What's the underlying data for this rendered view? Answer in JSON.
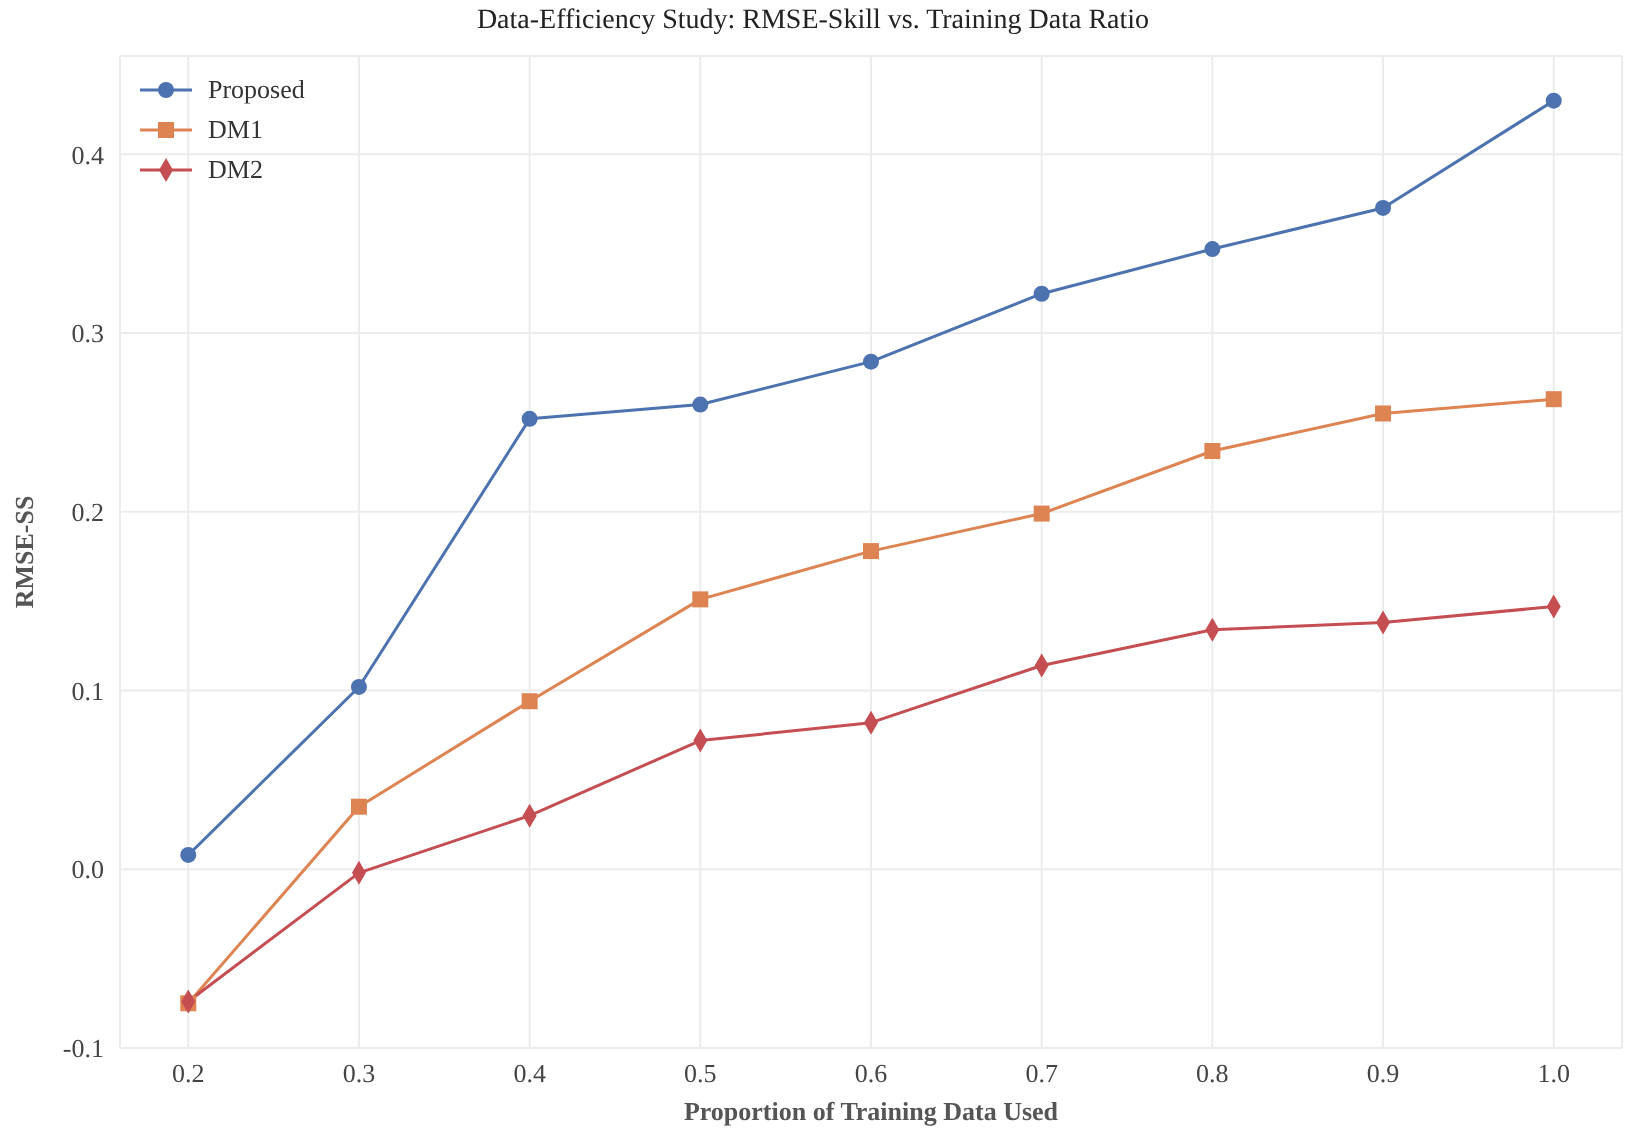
{
  "chart_data": {
    "type": "line",
    "title": "Data-Efficiency Study: RMSE-Skill vs. Training Data Ratio",
    "xlabel": "Proportion of Training Data Used",
    "ylabel": "RMSE-SS",
    "x": [
      0.2,
      0.3,
      0.4,
      0.5,
      0.6,
      0.7,
      0.8,
      0.9,
      1.0
    ],
    "series": [
      {
        "name": "Proposed",
        "color": "#4c72b0",
        "marker": "circle",
        "values": [
          0.008,
          0.102,
          0.252,
          0.26,
          0.284,
          0.322,
          0.347,
          0.37,
          0.43
        ]
      },
      {
        "name": "DM1",
        "color": "#dd8452",
        "marker": "square",
        "values": [
          -0.075,
          0.035,
          0.094,
          0.151,
          0.178,
          0.199,
          0.234,
          0.255,
          0.263
        ]
      },
      {
        "name": "DM2",
        "color": "#c44e52",
        "marker": "diamond",
        "values": [
          -0.074,
          -0.002,
          0.03,
          0.072,
          0.082,
          0.114,
          0.134,
          0.138,
          0.147
        ]
      }
    ],
    "xlim": [
      0.16,
      1.04
    ],
    "xticks": [
      0.2,
      0.3,
      0.4,
      0.5,
      0.6,
      0.7,
      0.8,
      0.9,
      {
        "value": 1,
        "label": "1.0"
      }
    ],
    "ylim": [
      -0.1,
      0.455
    ],
    "yticks": [
      -0.1,
      {
        "value": 0,
        "label": "0.0"
      },
      0.1,
      0.2,
      0.3,
      0.4
    ],
    "grid": true,
    "legend": "top left",
    "line_style": "solid"
  }
}
